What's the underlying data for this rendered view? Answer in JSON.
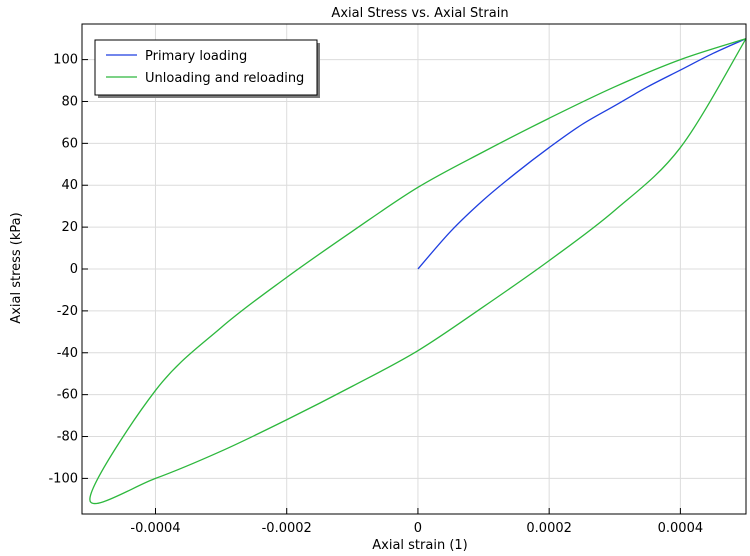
{
  "chart_data": {
    "type": "line",
    "title": "Axial Stress vs. Axial Strain",
    "xlabel": "Axial strain (1)",
    "ylabel": "Axial stress (kPa)",
    "xlim": [
      -0.000512,
      0.0005
    ],
    "ylim": [
      -117,
      117
    ],
    "grid": true,
    "legend_position": "top-left",
    "x_ticks": [
      -0.0004,
      -0.0002,
      0,
      0.0002,
      0.0004
    ],
    "x_tick_labels": [
      "-0.0004",
      "-0.0002",
      "0",
      "0.0002",
      "0.0004"
    ],
    "y_ticks": [
      100,
      80,
      60,
      40,
      20,
      0,
      -20,
      -40,
      -60,
      -80,
      -100
    ],
    "y_tick_labels": [
      "100",
      "80",
      "60",
      "40",
      "20",
      "0",
      "-20",
      "-40",
      "-60",
      "-80",
      "-100"
    ],
    "series": [
      {
        "name": "Primary loading",
        "color": "#1f3fe0",
        "x": [
          0,
          5e-05,
          0.0001,
          0.00015,
          0.0002,
          0.00025,
          0.0003,
          0.00035,
          0.0004,
          0.00045,
          0.0005
        ],
        "y": [
          0,
          18,
          33,
          46,
          58,
          69,
          78,
          87,
          95,
          103,
          110
        ]
      },
      {
        "name": "Unloading and reloading",
        "color": "#2db83d",
        "x": [
          0.0005,
          0.0004,
          0.0003,
          0.0002,
          0.0001,
          0,
          -0.0001,
          -0.0002,
          -0.0003,
          -0.0004,
          -0.0005,
          -0.0004,
          -0.0003,
          -0.0002,
          -0.0001,
          0,
          0.0001,
          0.0002,
          0.0003,
          0.0004,
          0.0005
        ],
        "y": [
          110,
          100,
          87,
          72,
          56,
          39,
          18,
          -4,
          -28,
          -58,
          -110,
          -100,
          -87,
          -72,
          -56,
          -39,
          -18,
          4,
          28,
          58,
          110
        ]
      }
    ]
  }
}
